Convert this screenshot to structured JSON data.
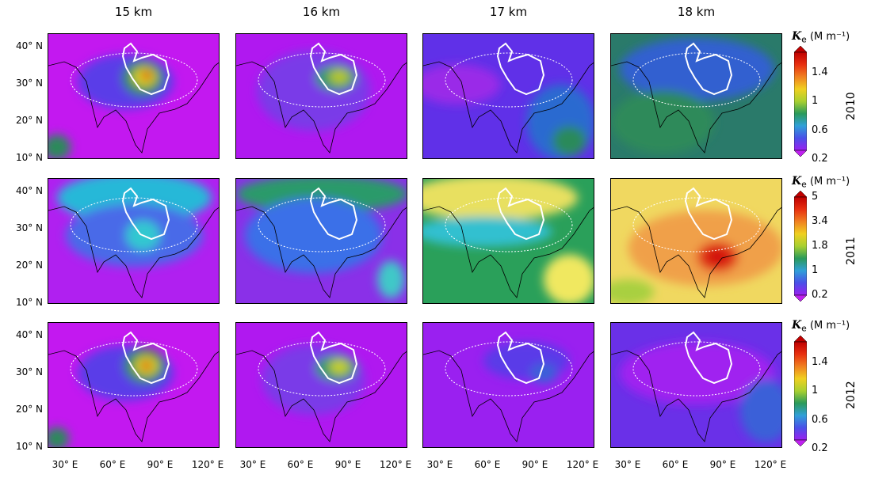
{
  "columns": [
    "15 km",
    "16 km",
    "17 km",
    "18 km"
  ],
  "lat_labels": [
    "40° N",
    "30° N",
    "20° N",
    "10° N"
  ],
  "lon_labels": [
    "30° E",
    "60° E",
    "90° E",
    "120° E"
  ],
  "rows": [
    {
      "year": "2010",
      "colorbar": {
        "title_symbol": "K",
        "title_sub": "e",
        "title_unit": "(M m⁻¹)",
        "ticks": [
          "1.4",
          "1",
          "0.6",
          "0.2"
        ]
      },
      "panels": [
        {
          "background": "#c318f0",
          "blobs": [
            {
              "lon": 0.45,
              "lat": 0.62,
              "rx": 0.28,
              "ry": 0.22,
              "color": "#5a3de8"
            },
            {
              "lon": 0.55,
              "lat": 0.65,
              "rx": 0.12,
              "ry": 0.14,
              "color": "#2a8a5a"
            },
            {
              "lon": 0.56,
              "lat": 0.66,
              "rx": 0.07,
              "ry": 0.08,
              "color": "#d8d820"
            },
            {
              "lon": 0.57,
              "lat": 0.67,
              "rx": 0.03,
              "ry": 0.04,
              "color": "#e01010"
            },
            {
              "lon": 0.05,
              "lat": 0.1,
              "rx": 0.08,
              "ry": 0.1,
              "color": "#2a8a5a"
            }
          ]
        },
        {
          "background": "#b018f0",
          "blobs": [
            {
              "lon": 0.45,
              "lat": 0.55,
              "rx": 0.33,
              "ry": 0.32,
              "color": "#7a3ae8"
            },
            {
              "lon": 0.58,
              "lat": 0.65,
              "rx": 0.12,
              "ry": 0.1,
              "color": "#2a9a6a"
            },
            {
              "lon": 0.6,
              "lat": 0.66,
              "rx": 0.06,
              "ry": 0.06,
              "color": "#b8c828"
            }
          ]
        },
        {
          "background": "#6030e8",
          "blobs": [
            {
              "lon": 0.2,
              "lat": 0.6,
              "rx": 0.25,
              "ry": 0.16,
              "color": "#9a2ae8"
            },
            {
              "lon": 0.8,
              "lat": 0.3,
              "rx": 0.2,
              "ry": 0.3,
              "color": "#2a6ad0"
            },
            {
              "lon": 0.85,
              "lat": 0.15,
              "rx": 0.1,
              "ry": 0.12,
              "color": "#2a8a5a"
            }
          ]
        },
        {
          "background": "#2a7a6a",
          "blobs": [
            {
              "lon": 0.5,
              "lat": 0.72,
              "rx": 0.45,
              "ry": 0.25,
              "color": "#3060d0"
            },
            {
              "lon": 0.3,
              "lat": 0.3,
              "rx": 0.3,
              "ry": 0.25,
              "color": "#2e8a5a"
            }
          ]
        }
      ]
    },
    {
      "year": "2011",
      "colorbar": {
        "title_symbol": "K",
        "title_sub": "e",
        "title_unit": "(M m⁻¹)",
        "ticks": [
          "5",
          "3.4",
          "1.8",
          "1",
          "0.2"
        ]
      },
      "panels": [
        {
          "background": "#b020f0",
          "blobs": [
            {
              "lon": 0.5,
              "lat": 0.85,
              "rx": 0.45,
              "ry": 0.2,
              "color": "#28b8d8"
            },
            {
              "lon": 0.5,
              "lat": 0.55,
              "rx": 0.4,
              "ry": 0.25,
              "color": "#4a6ae8"
            },
            {
              "lon": 0.55,
              "lat": 0.55,
              "rx": 0.1,
              "ry": 0.12,
              "color": "#30c8d0"
            }
          ]
        },
        {
          "background": "#8a30e8",
          "blobs": [
            {
              "lon": 0.5,
              "lat": 0.88,
              "rx": 0.5,
              "ry": 0.15,
              "color": "#2a9a6a"
            },
            {
              "lon": 0.45,
              "lat": 0.55,
              "rx": 0.4,
              "ry": 0.3,
              "color": "#3a70e8"
            },
            {
              "lon": 0.9,
              "lat": 0.2,
              "rx": 0.08,
              "ry": 0.15,
              "color": "#40c8c8"
            }
          ]
        },
        {
          "background": "#2aa05a",
          "blobs": [
            {
              "lon": 0.4,
              "lat": 0.85,
              "rx": 0.5,
              "ry": 0.18,
              "color": "#e8e060"
            },
            {
              "lon": 0.35,
              "lat": 0.58,
              "rx": 0.4,
              "ry": 0.12,
              "color": "#30c0d0"
            },
            {
              "lon": 0.85,
              "lat": 0.2,
              "rx": 0.15,
              "ry": 0.2,
              "color": "#f0e860"
            }
          ]
        },
        {
          "background": "#f0d860",
          "blobs": [
            {
              "lon": 0.55,
              "lat": 0.45,
              "rx": 0.45,
              "ry": 0.3,
              "color": "#f0a048"
            },
            {
              "lon": 0.62,
              "lat": 0.38,
              "rx": 0.12,
              "ry": 0.12,
              "color": "#e03018"
            },
            {
              "lon": 0.62,
              "lat": 0.38,
              "rx": 0.06,
              "ry": 0.06,
              "color": "#d01010"
            },
            {
              "lon": 0.1,
              "lat": 0.1,
              "rx": 0.15,
              "ry": 0.1,
              "color": "#a8d040"
            }
          ]
        }
      ]
    },
    {
      "year": "2012",
      "colorbar": {
        "title_symbol": "K",
        "title_sub": "e",
        "title_unit": "(M m⁻¹)",
        "ticks": [
          "1.4",
          "1",
          "0.6",
          "0.2"
        ]
      },
      "panels": [
        {
          "background": "#c318f0",
          "blobs": [
            {
              "lon": 0.45,
              "lat": 0.6,
              "rx": 0.28,
              "ry": 0.22,
              "color": "#5a3de8"
            },
            {
              "lon": 0.56,
              "lat": 0.66,
              "rx": 0.12,
              "ry": 0.14,
              "color": "#2a8a5a"
            },
            {
              "lon": 0.57,
              "lat": 0.66,
              "rx": 0.07,
              "ry": 0.08,
              "color": "#d8d820"
            },
            {
              "lon": 0.57,
              "lat": 0.66,
              "rx": 0.03,
              "ry": 0.04,
              "color": "#e01010"
            },
            {
              "lon": 0.05,
              "lat": 0.08,
              "rx": 0.07,
              "ry": 0.09,
              "color": "#2a8a5a"
            }
          ]
        },
        {
          "background": "#b018f0",
          "blobs": [
            {
              "lon": 0.45,
              "lat": 0.55,
              "rx": 0.3,
              "ry": 0.28,
              "color": "#7a3ae8"
            },
            {
              "lon": 0.58,
              "lat": 0.64,
              "rx": 0.12,
              "ry": 0.1,
              "color": "#2a9a6a"
            },
            {
              "lon": 0.6,
              "lat": 0.65,
              "rx": 0.06,
              "ry": 0.06,
              "color": "#c8d028"
            }
          ]
        },
        {
          "background": "#9a20f0",
          "blobs": [
            {
              "lon": 0.6,
              "lat": 0.7,
              "rx": 0.25,
              "ry": 0.15,
              "color": "#5a3ae8"
            },
            {
              "lon": 0.7,
              "lat": 0.6,
              "rx": 0.08,
              "ry": 0.08,
              "color": "#3a60d8"
            }
          ]
        },
        {
          "background": "#6a30e8",
          "blobs": [
            {
              "lon": 0.5,
              "lat": 0.6,
              "rx": 0.45,
              "ry": 0.25,
              "color": "#a020f0"
            },
            {
              "lon": 0.9,
              "lat": 0.3,
              "rx": 0.15,
              "ry": 0.25,
              "color": "#3a60d8"
            }
          ]
        }
      ]
    }
  ],
  "colors": {
    "frame": "#000000",
    "contour": "#ffffff"
  }
}
